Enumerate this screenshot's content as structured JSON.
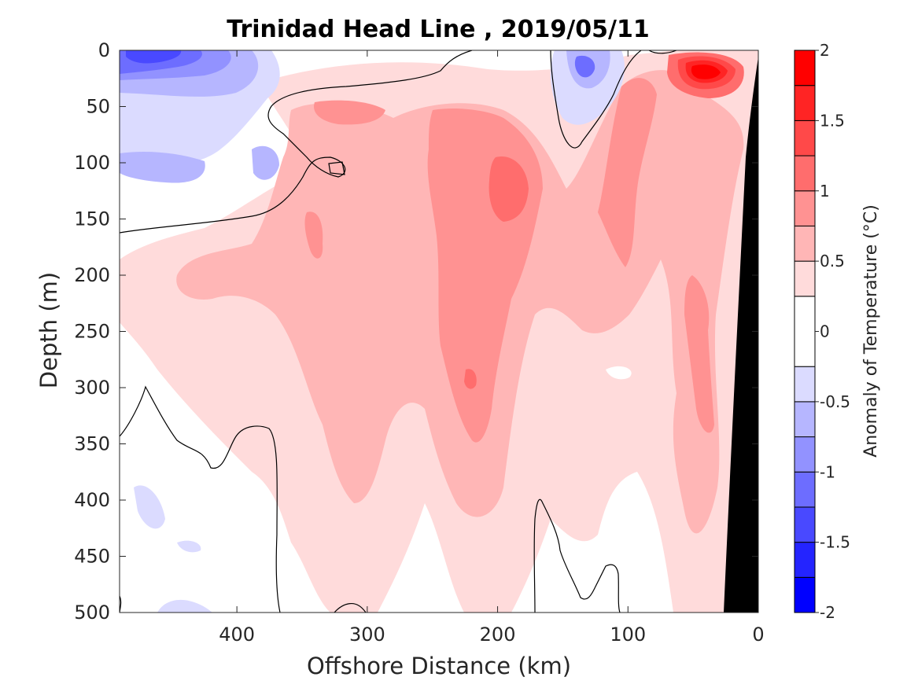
{
  "chart_data": {
    "type": "heatmap",
    "title": "Trinidad Head Line , 2019/05/11",
    "xlabel": "Offshore Distance (km)",
    "ylabel": "Depth (m)",
    "xlim": [
      490,
      0
    ],
    "ylim": [
      0,
      500
    ],
    "x_direction": "reversed",
    "y_direction": "reversed (depth increases downward)",
    "x_ticks": [
      400,
      300,
      200,
      100,
      0
    ],
    "y_ticks": [
      0,
      50,
      100,
      150,
      200,
      250,
      300,
      350,
      400,
      450,
      500
    ],
    "colorbar": {
      "label": "Anomaly of Temperature (°C)",
      "ticks": [
        2,
        1.5,
        1,
        0.5,
        0,
        -0.5,
        -1,
        -1.5,
        -2
      ],
      "levels": [
        -2,
        -1.75,
        -1.5,
        -1.25,
        -1,
        -0.75,
        -0.5,
        -0.25,
        0.25,
        0.5,
        0.75,
        1,
        1.25,
        1.5,
        1.75,
        2
      ],
      "colors": [
        "#0000ff",
        "#2424ff",
        "#4949ff",
        "#6d6dff",
        "#9292ff",
        "#b6b6ff",
        "#dbdbff",
        "#ffffff",
        "#ffdbdb",
        "#ffb6b6",
        "#ff9292",
        "#ff6d6d",
        "#ff4949",
        "#ff2424",
        "#ff0000"
      ]
    },
    "zero_contour": "black lines",
    "bathymetry_fill": "#000000",
    "features": [
      {
        "region": "surface, 350-490 km, 0-150 m",
        "anomaly": "-0.25 to -1.25"
      },
      {
        "region": "surface, 120-140 km, 0-70 m",
        "anomaly": "-0.25 to -1.0"
      },
      {
        "region": "core near 200 km, 50-450 m",
        "anomaly": "0.5 to 1.0"
      },
      {
        "region": "surface, 20-60 km, 0-40 m",
        "anomaly": "1.25 to 2.0"
      },
      {
        "region": "deep offshore, 350-490 km, 250-500 m",
        "anomaly": "-0.25 to 0.25"
      }
    ]
  }
}
